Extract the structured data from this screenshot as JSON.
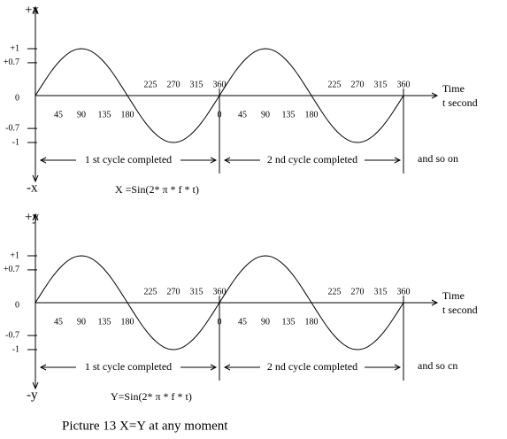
{
  "panels": [
    {
      "axis_top": "+x",
      "axis_bottom": "-x",
      "y_labels": [
        "+1",
        "+0.7",
        "0",
        "-0.7",
        "-1"
      ],
      "cycles": [
        {
          "below": [
            "45",
            "90",
            "135",
            "180"
          ],
          "above": [
            "225",
            "270",
            "315",
            "360"
          ],
          "text": "1 st cycle completed"
        },
        {
          "below": [
            "0",
            "45",
            "90",
            "135",
            "180"
          ],
          "above": [
            "225",
            "270",
            "315",
            "360"
          ],
          "text": "2 nd cycle completed"
        }
      ],
      "trailing": "and so on",
      "time_label": "Time",
      "unit_label": "t  second",
      "formula": "X =Sin(2* π * f * t)"
    },
    {
      "axis_top": "+y",
      "axis_bottom": "-y",
      "y_labels": [
        "+1",
        "+0.7",
        "0",
        "-0.7",
        "-1"
      ],
      "cycles": [
        {
          "below": [
            "45",
            "90",
            "135",
            "180"
          ],
          "above": [
            "225",
            "270",
            "315",
            "360"
          ],
          "text": "1 st cycle completed"
        },
        {
          "below": [
            "0",
            "45",
            "90",
            "135",
            "180"
          ],
          "above": [
            "225",
            "270",
            "315",
            "360"
          ],
          "text": "2 nd cycle completed"
        }
      ],
      "trailing": "and so cn",
      "time_label": "Time",
      "unit_label": "t  second",
      "formula": "Y=Sin(2* π * f * t)"
    }
  ],
  "caption": "Picture  13     X=Y at any  moment"
}
